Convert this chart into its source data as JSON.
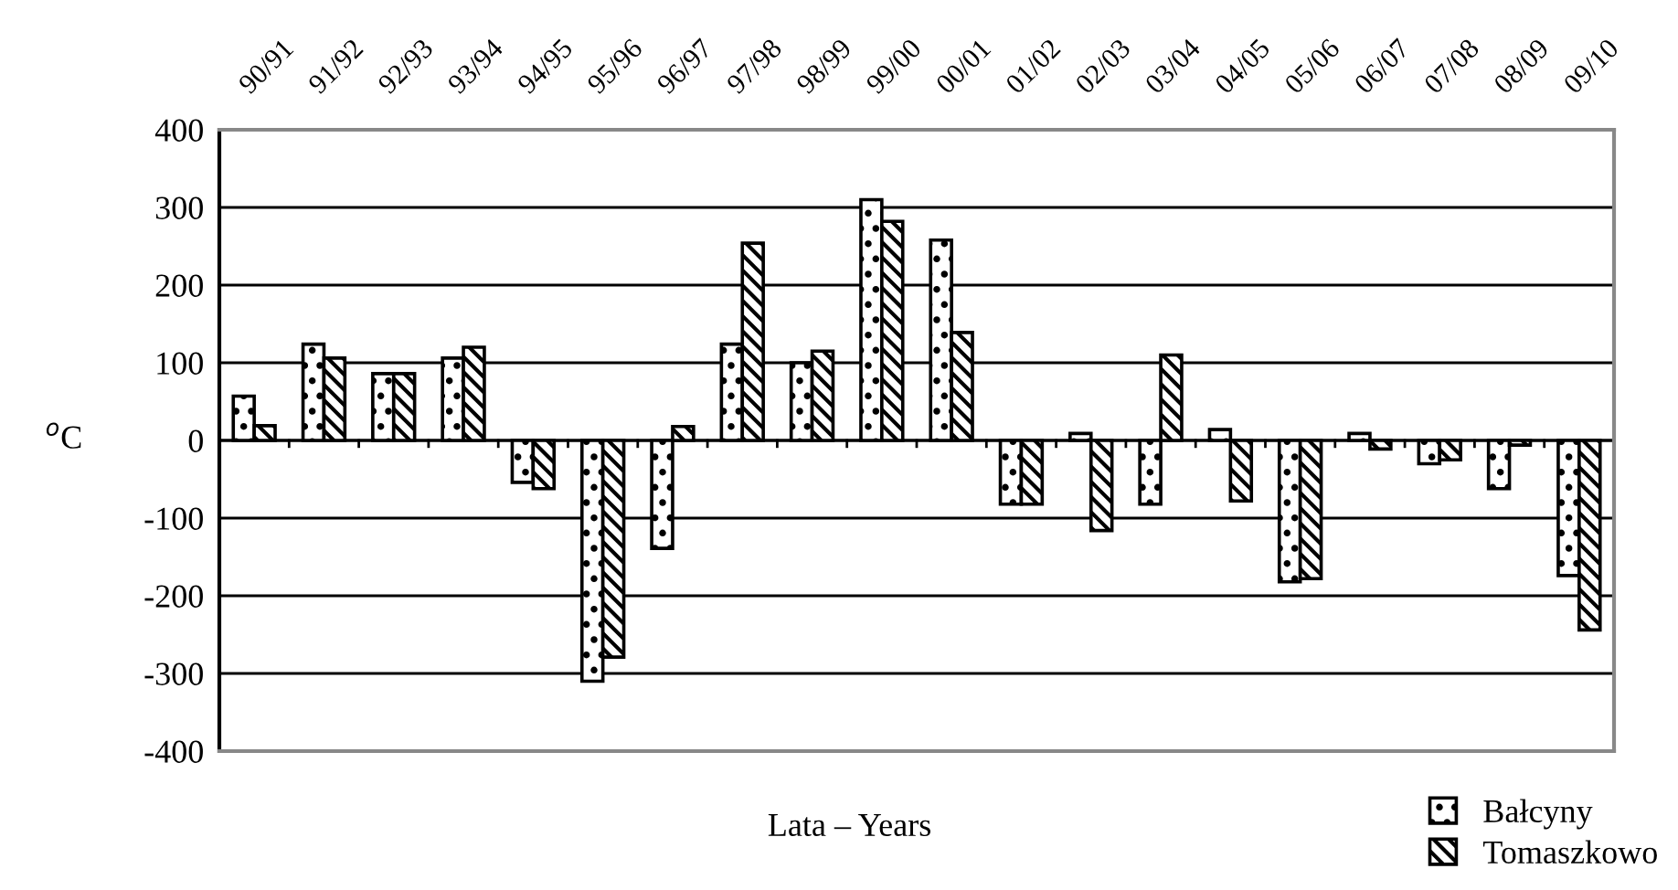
{
  "chart_data": {
    "type": "bar",
    "xlabel": "Lata – Years",
    "ylabel": "$^{o}$C",
    "categories": [
      "90/91",
      "91/92",
      "92/93",
      "93/94",
      "94/95",
      "95/96",
      "96/97",
      "97/98",
      "98/99",
      "99/00",
      "00/01",
      "01/02",
      "02/03",
      "03/04",
      "04/05",
      "05/06",
      "06/07",
      "07/08",
      "08/09",
      "09/10"
    ],
    "series": [
      {
        "name": "Bałcyny",
        "color": "#000000",
        "values": [
          57,
          124,
          86,
          106,
          -54,
          -310,
          -139,
          124,
          100,
          310,
          258,
          -82,
          9,
          -82,
          14,
          -182,
          9,
          -30,
          -62,
          -174
        ]
      },
      {
        "name": "Tomaszkowo",
        "color": "#000000",
        "values": [
          19,
          106,
          86,
          120,
          -62,
          -279,
          18,
          254,
          115,
          282,
          139,
          -82,
          -116,
          110,
          -78,
          -178,
          -11,
          -25,
          -6,
          -244
        ]
      }
    ],
    "ylim": [
      -400,
      400
    ],
    "yticks": [
      -400,
      -300,
      -200,
      -100,
      0,
      100,
      200,
      300,
      400
    ],
    "grid": "y",
    "legend": "bottom right"
  }
}
